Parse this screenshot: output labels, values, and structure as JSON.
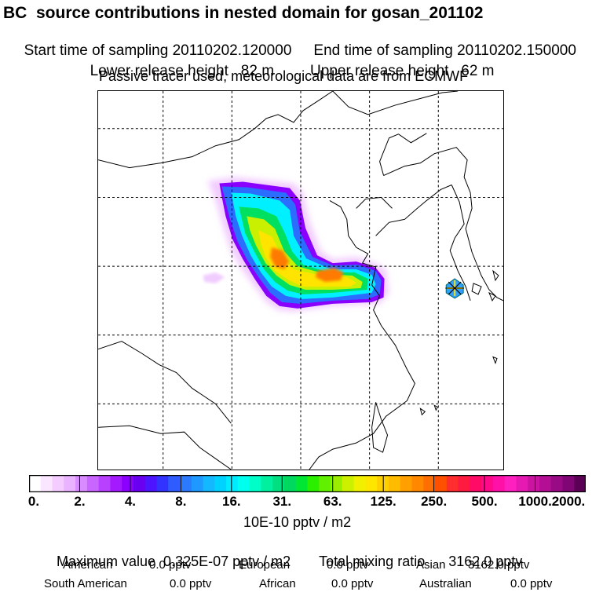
{
  "header": {
    "title": "BC  source contributions in nested domain for gosan_201102",
    "start": "Start time of sampling 20110202.120000",
    "end": "End time of sampling 20110202.150000",
    "lower": "Lower release height   82 m",
    "upper": "Upper release height   62 m",
    "note": "Passive tracer used, meteorological data are from ECMWF"
  },
  "map": {
    "grid_lon": [
      110,
      115,
      120,
      125,
      130
    ],
    "grid_lat": [
      25,
      30,
      35,
      40,
      45
    ],
    "receptor": "gosan-receptor-marker"
  },
  "colorbar": {
    "ticks": [
      "0.",
      "2.",
      "4.",
      "8.",
      "16.",
      "31.",
      "63.",
      "125.",
      "250.",
      "500.",
      "1000.",
      "2000."
    ],
    "colors": [
      "#ffffff",
      "#fbe6ff",
      "#f4ccff",
      "#eab3ff",
      "#d98cff",
      "#c966ff",
      "#b840ff",
      "#a31aff",
      "#8c00ff",
      "#6a00f0",
      "#4d14ff",
      "#3333ff",
      "#2f5cff",
      "#2b7aff",
      "#1f99ff",
      "#14b8ff",
      "#00d2ff",
      "#00ebff",
      "#00ffee",
      "#00ffc8",
      "#00f0a0",
      "#00e080",
      "#00d860",
      "#00e632",
      "#2af000",
      "#60f000",
      "#99ee00",
      "#ccf000",
      "#f0f000",
      "#ffe600",
      "#ffd000",
      "#ffbb00",
      "#ffa000",
      "#ff8800",
      "#ff6e00",
      "#ff5000",
      "#ff2e2e",
      "#ff1a40",
      "#ff0a66",
      "#ff0a88",
      "#ff10a6",
      "#ff20c0",
      "#e61ab2",
      "#cc14a3",
      "#b30e94",
      "#990a85",
      "#800575",
      "#5c0055"
    ],
    "units": "10E-10 pptv / m2"
  },
  "summary": {
    "max_label": "Maximum value  0.325E-07 pptv / m2",
    "total_label": "Total mixing ratio",
    "total_value": "3162.0 pptv",
    "regions": [
      {
        "name": "American",
        "value": "0.0 pptv"
      },
      {
        "name": "European",
        "value": "0.0 pptv"
      },
      {
        "name": "Asian",
        "value": "3162.0 pptv"
      },
      {
        "name": "South American",
        "value": "0.0 pptv"
      },
      {
        "name": "African",
        "value": "0.0 pptv"
      },
      {
        "name": "Australian",
        "value": "0.0 pptv"
      }
    ]
  }
}
